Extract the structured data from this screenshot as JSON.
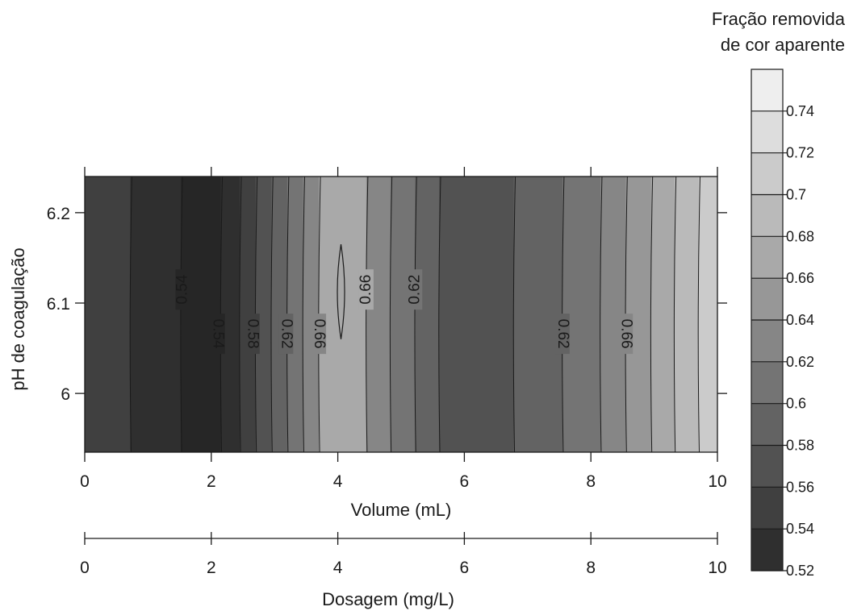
{
  "chart_data": {
    "type": "heatmap",
    "subtype": "filled-contour",
    "title": "",
    "xlabel": "Volume (mL)",
    "ylabel": "pH de coagulação",
    "xlim": [
      0,
      10
    ],
    "ylim": [
      5.935,
      6.24
    ],
    "x_ticks": [
      "0",
      "2",
      "4",
      "6",
      "8",
      "10"
    ],
    "y_ticks": [
      {
        "value": 6.0,
        "label": "6"
      },
      {
        "value": 6.1,
        "label": "6.1"
      },
      {
        "value": 6.2,
        "label": "6.2"
      }
    ],
    "secondary_x_axis": {
      "label": "Dosagem (mg/L)",
      "xlim": [
        0,
        10
      ],
      "ticks": [
        "0",
        "2",
        "4",
        "6",
        "8",
        "10"
      ]
    },
    "colorbar": {
      "title_line1": "Fração removida",
      "title_line2": "de cor aparente",
      "levels": [
        0.52,
        0.54,
        0.56,
        0.58,
        0.6,
        0.62,
        0.64,
        0.66,
        0.68,
        0.7,
        0.72,
        0.74,
        0.76
      ],
      "tick_labels": [
        "0.52",
        "0.54",
        "0.56",
        "0.58",
        "0.6",
        "0.62",
        "0.64",
        "0.66",
        "0.68",
        "0.7",
        "0.72",
        "0.74"
      ],
      "color_min": "#262626",
      "color_max": "#f7f7f7"
    },
    "bands": [
      {
        "x0": 0.0,
        "x1": 0.72,
        "level": 0.55
      },
      {
        "x0": 0.72,
        "x1": 1.52,
        "level": 0.53
      },
      {
        "x0": 1.52,
        "x1": 2.15,
        "level": 0.51
      },
      {
        "x0": 2.15,
        "x1": 2.45,
        "level": 0.53
      },
      {
        "x0": 2.45,
        "x1": 2.7,
        "level": 0.55
      },
      {
        "x0": 2.7,
        "x1": 2.95,
        "level": 0.57
      },
      {
        "x0": 2.95,
        "x1": 3.2,
        "level": 0.59
      },
      {
        "x0": 3.2,
        "x1": 3.45,
        "level": 0.61
      },
      {
        "x0": 3.45,
        "x1": 3.7,
        "level": 0.63
      },
      {
        "x0": 3.7,
        "x1": 4.45,
        "level": 0.67
      },
      {
        "x0": 4.45,
        "x1": 4.83,
        "level": 0.63
      },
      {
        "x0": 4.83,
        "x1": 5.22,
        "level": 0.61
      },
      {
        "x0": 5.22,
        "x1": 5.6,
        "level": 0.59
      },
      {
        "x0": 5.6,
        "x1": 6.78,
        "level": 0.57
      },
      {
        "x0": 6.78,
        "x1": 7.55,
        "level": 0.59
      },
      {
        "x0": 7.55,
        "x1": 8.15,
        "level": 0.61
      },
      {
        "x0": 8.15,
        "x1": 8.55,
        "level": 0.63
      },
      {
        "x0": 8.55,
        "x1": 8.95,
        "level": 0.65
      },
      {
        "x0": 8.95,
        "x1": 9.32,
        "level": 0.67
      },
      {
        "x0": 9.32,
        "x1": 9.7,
        "level": 0.69
      },
      {
        "x0": 9.7,
        "x1": 10.0,
        "level": 0.71
      }
    ],
    "contour_labels": [
      {
        "text": "0.54",
        "x": 1.55,
        "y": 6.115,
        "flip": false
      },
      {
        "text": "0.54",
        "x": 2.1,
        "y": 6.066,
        "flip": true
      },
      {
        "text": "0.58",
        "x": 2.65,
        "y": 6.066,
        "flip": true
      },
      {
        "text": "0.62",
        "x": 3.18,
        "y": 6.066,
        "flip": true
      },
      {
        "text": "0.66",
        "x": 3.7,
        "y": 6.066,
        "flip": true
      },
      {
        "text": "0.66",
        "x": 4.45,
        "y": 6.115,
        "flip": false
      },
      {
        "text": "0.62",
        "x": 5.22,
        "y": 6.115,
        "flip": false
      },
      {
        "text": "0.62",
        "x": 7.55,
        "y": 6.066,
        "flip": true
      },
      {
        "text": "0.66",
        "x": 8.55,
        "y": 6.066,
        "flip": true
      }
    ],
    "closed_contour": {
      "x_center": 4.05,
      "y_min": 6.06,
      "y_max": 6.165,
      "level": 0.68
    }
  }
}
